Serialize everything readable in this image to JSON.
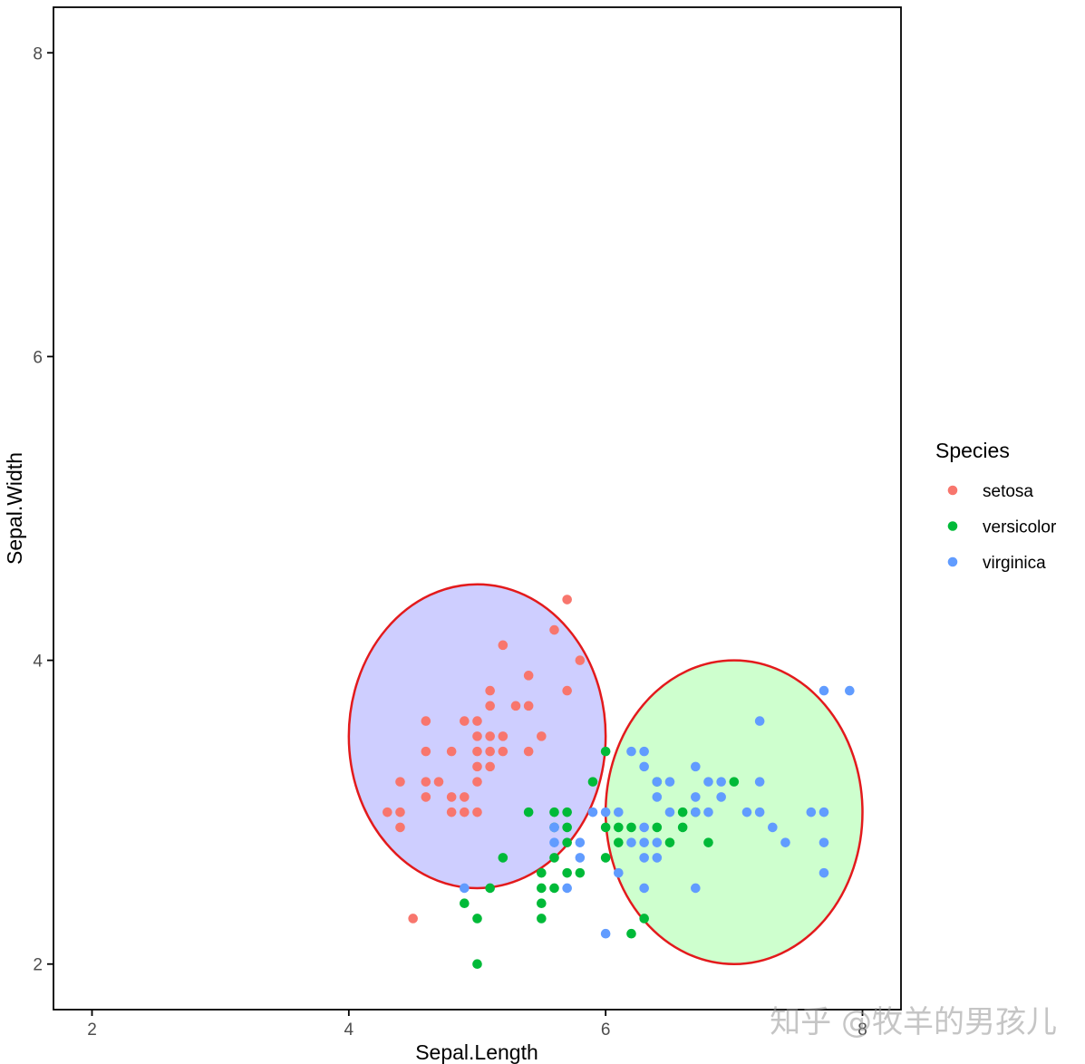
{
  "chart_data": {
    "type": "scatter",
    "title": "",
    "xlabel": "Sepal.Length",
    "ylabel": "Sepal.Width",
    "xlim": [
      1.7,
      8.3
    ],
    "ylim": [
      1.7,
      8.3
    ],
    "x_ticks": [
      2,
      4,
      6,
      8
    ],
    "y_ticks": [
      2,
      4,
      6,
      8
    ],
    "grid": false,
    "legend": {
      "title": "Species",
      "placement": "right",
      "entries": [
        "setosa",
        "versicolor",
        "virginica"
      ]
    },
    "series": [
      {
        "name": "setosa",
        "color": "#F8766D",
        "points": [
          [
            4.5,
            2.3
          ],
          [
            5.7,
            4.4
          ],
          [
            5.6,
            4.2
          ],
          [
            5.2,
            4.1
          ],
          [
            5.8,
            4.0
          ],
          [
            5.4,
            3.9
          ],
          [
            5.1,
            3.8
          ],
          [
            5.7,
            3.8
          ],
          [
            5.1,
            3.7
          ],
          [
            5.3,
            3.7
          ],
          [
            5.4,
            3.7
          ],
          [
            4.6,
            3.6
          ],
          [
            4.9,
            3.6
          ],
          [
            5.0,
            3.6
          ],
          [
            5.0,
            3.5
          ],
          [
            5.1,
            3.5
          ],
          [
            5.2,
            3.5
          ],
          [
            5.5,
            3.5
          ],
          [
            4.6,
            3.4
          ],
          [
            4.8,
            3.4
          ],
          [
            5.0,
            3.4
          ],
          [
            5.1,
            3.4
          ],
          [
            5.2,
            3.4
          ],
          [
            5.4,
            3.4
          ],
          [
            5.0,
            3.3
          ],
          [
            5.1,
            3.3
          ],
          [
            4.4,
            3.2
          ],
          [
            4.6,
            3.2
          ],
          [
            4.7,
            3.2
          ],
          [
            5.0,
            3.2
          ],
          [
            4.6,
            3.1
          ],
          [
            4.8,
            3.1
          ],
          [
            4.9,
            3.1
          ],
          [
            4.3,
            3.0
          ],
          [
            4.4,
            3.0
          ],
          [
            4.8,
            3.0
          ],
          [
            4.9,
            3.0
          ],
          [
            5.0,
            3.0
          ],
          [
            4.4,
            2.9
          ]
        ]
      },
      {
        "name": "versicolor",
        "color": "#00BA38",
        "points": [
          [
            5.0,
            2.0
          ],
          [
            6.2,
            2.2
          ],
          [
            6.3,
            2.3
          ],
          [
            5.0,
            2.3
          ],
          [
            5.5,
            2.3
          ],
          [
            4.9,
            2.4
          ],
          [
            5.5,
            2.4
          ],
          [
            5.1,
            2.5
          ],
          [
            5.5,
            2.5
          ],
          [
            5.6,
            2.5
          ],
          [
            5.5,
            2.6
          ],
          [
            5.7,
            2.6
          ],
          [
            5.8,
            2.6
          ],
          [
            5.2,
            2.7
          ],
          [
            5.6,
            2.7
          ],
          [
            6.0,
            2.7
          ],
          [
            5.7,
            2.8
          ],
          [
            6.1,
            2.8
          ],
          [
            6.5,
            2.8
          ],
          [
            6.8,
            2.8
          ],
          [
            5.6,
            2.9
          ],
          [
            5.7,
            2.9
          ],
          [
            6.0,
            2.9
          ],
          [
            6.1,
            2.9
          ],
          [
            6.2,
            2.9
          ],
          [
            6.4,
            2.9
          ],
          [
            6.6,
            2.9
          ],
          [
            5.4,
            3.0
          ],
          [
            5.6,
            3.0
          ],
          [
            5.7,
            3.0
          ],
          [
            6.6,
            3.0
          ],
          [
            6.7,
            3.0
          ],
          [
            5.9,
            3.2
          ],
          [
            6.4,
            3.2
          ],
          [
            7.0,
            3.2
          ],
          [
            6.0,
            3.4
          ]
        ]
      },
      {
        "name": "virginica",
        "color": "#619CFF",
        "points": [
          [
            6.0,
            2.2
          ],
          [
            4.9,
            2.5
          ],
          [
            5.7,
            2.5
          ],
          [
            6.3,
            2.5
          ],
          [
            6.7,
            2.5
          ],
          [
            6.1,
            2.6
          ],
          [
            7.7,
            2.6
          ],
          [
            5.8,
            2.7
          ],
          [
            6.3,
            2.7
          ],
          [
            6.4,
            2.7
          ],
          [
            5.6,
            2.8
          ],
          [
            5.8,
            2.8
          ],
          [
            6.2,
            2.8
          ],
          [
            6.3,
            2.8
          ],
          [
            6.4,
            2.8
          ],
          [
            7.4,
            2.8
          ],
          [
            7.7,
            2.8
          ],
          [
            5.6,
            2.9
          ],
          [
            6.3,
            2.9
          ],
          [
            7.3,
            2.9
          ],
          [
            5.9,
            3.0
          ],
          [
            6.0,
            3.0
          ],
          [
            6.1,
            3.0
          ],
          [
            6.5,
            3.0
          ],
          [
            6.7,
            3.0
          ],
          [
            6.8,
            3.0
          ],
          [
            7.1,
            3.0
          ],
          [
            7.2,
            3.0
          ],
          [
            7.6,
            3.0
          ],
          [
            7.7,
            3.0
          ],
          [
            6.4,
            3.1
          ],
          [
            6.7,
            3.1
          ],
          [
            6.9,
            3.1
          ],
          [
            6.4,
            3.2
          ],
          [
            6.5,
            3.2
          ],
          [
            6.8,
            3.2
          ],
          [
            6.9,
            3.2
          ],
          [
            7.2,
            3.2
          ],
          [
            6.3,
            3.3
          ],
          [
            6.7,
            3.3
          ],
          [
            6.2,
            3.4
          ],
          [
            6.3,
            3.4
          ],
          [
            7.2,
            3.6
          ],
          [
            7.7,
            3.8
          ],
          [
            7.9,
            3.8
          ]
        ]
      }
    ],
    "ellipses": [
      {
        "cx": 5.0,
        "cy": 3.5,
        "rx": 1.0,
        "ry": 1.0,
        "fill": "#6666FF",
        "fill_opacity": 0.32,
        "stroke": "#E31A1C"
      },
      {
        "cx": 7.0,
        "cy": 3.0,
        "rx": 1.0,
        "ry": 1.0,
        "fill": "#66FF66",
        "fill_opacity": 0.32,
        "stroke": "#E31A1C"
      }
    ]
  },
  "watermark": "知乎 @牧羊的男孩儿"
}
